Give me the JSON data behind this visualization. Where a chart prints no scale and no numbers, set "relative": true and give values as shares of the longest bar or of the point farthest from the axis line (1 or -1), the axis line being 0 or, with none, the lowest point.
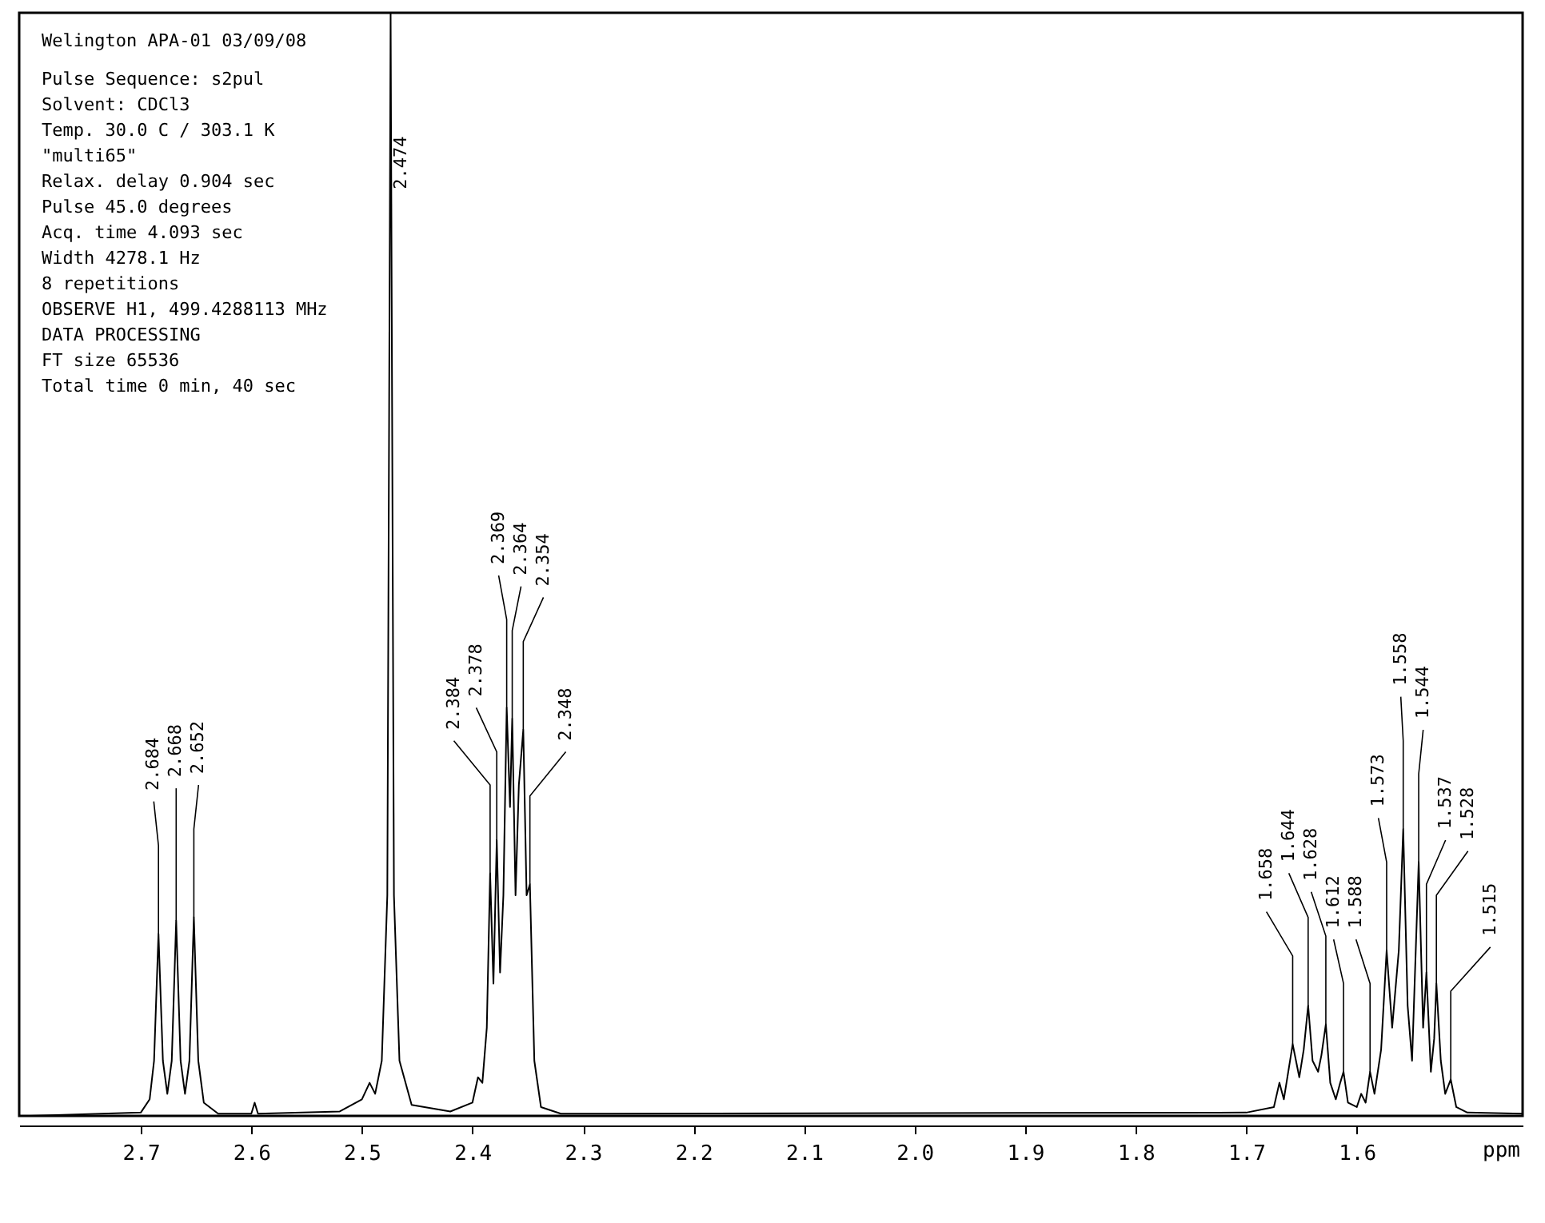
{
  "chart_data": {
    "type": "line",
    "relative": true,
    "title": "Welington APA-01 03/09/08",
    "xlabel": "ppm",
    "xlim": [
      2.81,
      1.45
    ],
    "xticks": [
      2.7,
      2.6,
      2.5,
      2.4,
      2.3,
      2.2,
      2.1,
      {
        "value": 2.0,
        "label": "2.0"
      },
      1.9,
      1.8,
      1.7,
      1.6
    ],
    "grid": false,
    "marker": "none",
    "line_style": "solid",
    "series": [
      {
        "color": "#000000",
        "x": [
          2.8,
          2.7,
          2.692,
          2.688,
          2.684,
          2.68,
          2.676,
          2.672,
          2.668,
          2.664,
          2.66,
          2.656,
          2.652,
          2.648,
          2.643,
          2.63,
          2.6,
          2.597,
          2.594,
          2.52,
          2.5,
          2.493,
          2.488,
          2.482,
          2.477,
          2.474,
          2.471,
          2.466,
          2.455,
          2.42,
          2.4,
          2.395,
          2.391,
          2.387,
          2.384,
          2.381,
          2.378,
          2.375,
          2.372,
          2.369,
          2.366,
          2.364,
          2.361,
          2.358,
          2.354,
          2.351,
          2.348,
          2.344,
          2.338,
          2.32,
          1.7,
          1.675,
          1.67,
          1.666,
          1.662,
          1.658,
          1.652,
          1.648,
          1.644,
          1.64,
          1.635,
          1.632,
          1.628,
          1.624,
          1.619,
          1.615,
          1.612,
          1.608,
          1.6,
          1.596,
          1.592,
          1.588,
          1.584,
          1.578,
          1.573,
          1.568,
          1.562,
          1.558,
          1.554,
          1.55,
          1.544,
          1.54,
          1.537,
          1.533,
          1.53,
          1.528,
          1.524,
          1.52,
          1.515,
          1.51,
          1.5,
          1.45
        ],
        "values": [
          0.0,
          0.003,
          0.015,
          0.05,
          0.165,
          0.05,
          0.02,
          0.05,
          0.177,
          0.05,
          0.02,
          0.05,
          0.18,
          0.05,
          0.012,
          0.002,
          0.002,
          0.012,
          0.002,
          0.004,
          0.015,
          0.03,
          0.02,
          0.05,
          0.2,
          1.0,
          0.2,
          0.05,
          0.01,
          0.004,
          0.012,
          0.035,
          0.03,
          0.08,
          0.22,
          0.12,
          0.25,
          0.13,
          0.2,
          0.37,
          0.28,
          0.36,
          0.2,
          0.3,
          0.35,
          0.2,
          0.21,
          0.05,
          0.008,
          0.002,
          0.003,
          0.008,
          0.03,
          0.015,
          0.04,
          0.065,
          0.035,
          0.06,
          0.1,
          0.05,
          0.04,
          0.055,
          0.083,
          0.03,
          0.015,
          0.03,
          0.04,
          0.012,
          0.008,
          0.02,
          0.012,
          0.04,
          0.02,
          0.06,
          0.15,
          0.08,
          0.15,
          0.26,
          0.1,
          0.05,
          0.23,
          0.08,
          0.13,
          0.04,
          0.07,
          0.12,
          0.05,
          0.02,
          0.033,
          0.008,
          0.003,
          0.002
        ]
      }
    ],
    "annotations": [
      "Pulse Sequence: s2pul",
      "Solvent: CDCl3",
      "Temp. 30.0 C / 303.1 K",
      "\"multi65\"",
      "Relax. delay 0.904 sec",
      "Pulse 45.0 degrees",
      "Acq. time 4.093 sec",
      "Width 4278.1 Hz",
      "8 repetitions",
      "OBSERVE   H1, 499.4288113 MHz",
      "DATA PROCESSING",
      "FT size 65536",
      "Total time 0 min, 40 sec",
      {
        "text": "2.684",
        "x": 2.684,
        "y": 0.165
      },
      {
        "text": "2.668",
        "x": 2.668,
        "y": 0.177
      },
      {
        "text": "2.652",
        "x": 2.652,
        "y": 0.18
      },
      {
        "text": "2.474",
        "x": 2.474,
        "y": 0.87
      },
      {
        "text": "2.384",
        "x": 2.384,
        "y": 0.22
      },
      {
        "text": "2.378",
        "x": 2.378,
        "y": 0.25
      },
      {
        "text": "2.369",
        "x": 2.369,
        "y": 0.37
      },
      {
        "text": "2.364",
        "x": 2.364,
        "y": 0.36
      },
      {
        "text": "2.354",
        "x": 2.354,
        "y": 0.35
      },
      {
        "text": "2.348",
        "x": 2.348,
        "y": 0.21
      },
      {
        "text": "1.658",
        "x": 1.658,
        "y": 0.065
      },
      {
        "text": "1.644",
        "x": 1.644,
        "y": 0.1
      },
      {
        "text": "1.628",
        "x": 1.628,
        "y": 0.083
      },
      {
        "text": "1.612",
        "x": 1.612,
        "y": 0.04
      },
      {
        "text": "1.588",
        "x": 1.588,
        "y": 0.04
      },
      {
        "text": "1.573",
        "x": 1.573,
        "y": 0.15
      },
      {
        "text": "1.558",
        "x": 1.558,
        "y": 0.26
      },
      {
        "text": "1.544",
        "x": 1.544,
        "y": 0.23
      },
      {
        "text": "1.537",
        "x": 1.537,
        "y": 0.13
      },
      {
        "text": "1.528",
        "x": 1.528,
        "y": 0.12
      },
      {
        "text": "1.515",
        "x": 1.515,
        "y": 0.033
      }
    ]
  }
}
